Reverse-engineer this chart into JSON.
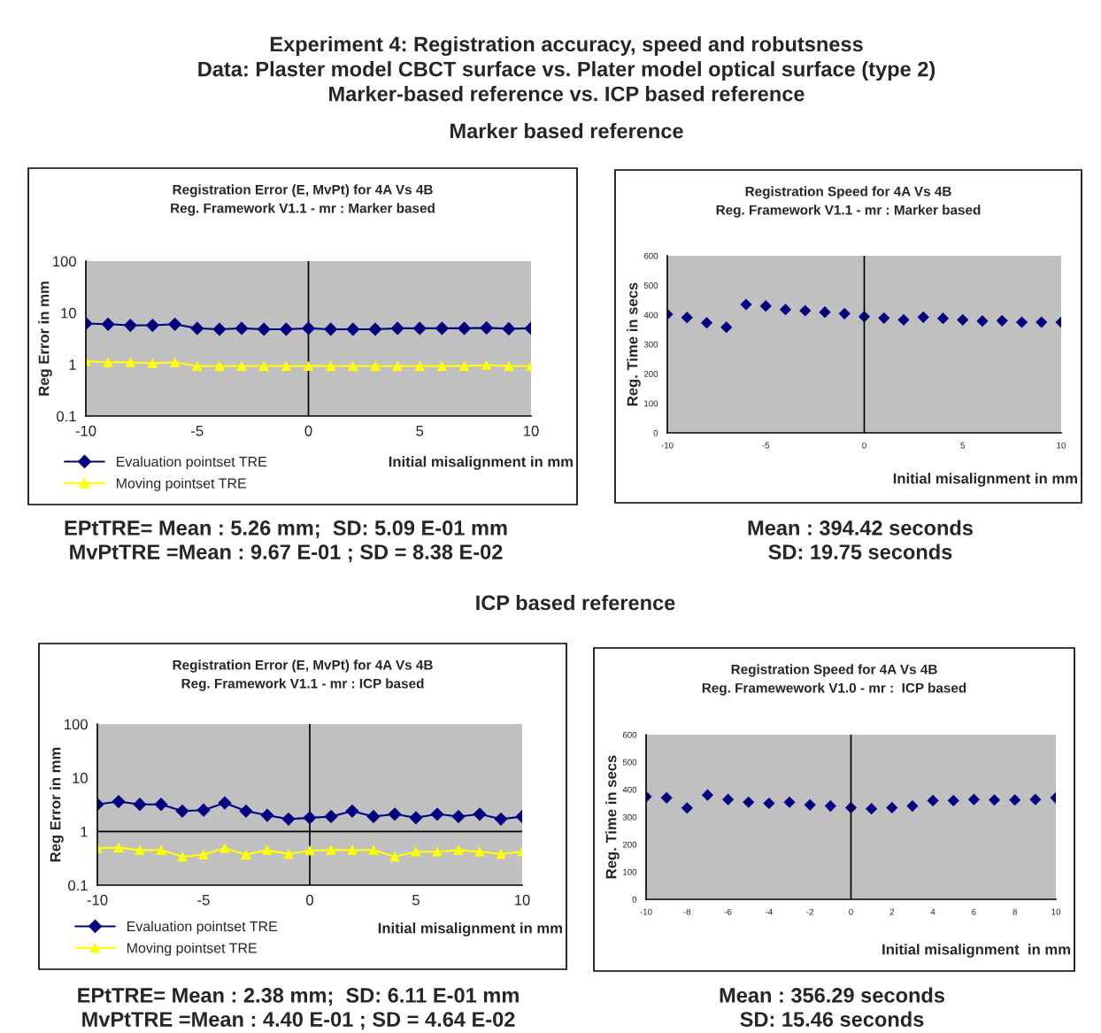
{
  "chart_data": [
    {
      "type": "other",
      "title": "Experiment 4: Registration accuracy, speed and robutsness\nData: Plaster model CBCT surface vs. Plater model optical surface (type 2)\nMarker-based reference vs. ICP based reference",
      "subtitle": "Marker based reference"
    },
    {
      "type": "line",
      "title": "Registration Error (E, MvPt) for 4A Vs 4B\nReg. Framework V1.1 - mr : Marker based",
      "xlabel": "Initial misalignment in mm",
      "ylabel": "Reg Error in mm",
      "log": "y",
      "legend": "bottom left",
      "x": [
        -10,
        -9,
        -8,
        -7,
        -6,
        -5,
        -4,
        -3,
        -2,
        -1,
        0,
        1,
        2,
        3,
        4,
        5,
        6,
        7,
        8,
        9,
        10
      ],
      "series": [
        {
          "name": "Evaluation pointset TRE",
          "color": "#000080",
          "marker": "diamond",
          "values": [
            6.2,
            6.0,
            5.7,
            5.7,
            6.0,
            5.0,
            4.8,
            5.0,
            4.8,
            4.8,
            5.0,
            4.8,
            4.8,
            4.8,
            5.0,
            5.0,
            5.0,
            5.0,
            5.1,
            4.9,
            5.0
          ]
        },
        {
          "name": "Moving pointset TRE",
          "color": "#ffff00",
          "marker": "triangle",
          "values": [
            1.15,
            1.1,
            1.1,
            1.05,
            1.1,
            0.93,
            0.93,
            0.93,
            0.93,
            0.93,
            0.93,
            0.93,
            0.93,
            0.93,
            0.93,
            0.93,
            0.93,
            0.93,
            0.97,
            0.93,
            0.93
          ]
        }
      ],
      "xlim": [
        -10,
        10
      ],
      "xticks": [
        -10,
        -5,
        0,
        5,
        10
      ],
      "ylim": [
        0.1,
        100
      ],
      "yticks": [
        0.1,
        1,
        10,
        100
      ],
      "ref_lines": [
        {
          "axis": "x",
          "value": 0,
          "color": "#000000"
        }
      ],
      "annotations": [
        "EPtTRE= Mean : 5.26 mm;  SD: 5.09 E-01 mm\nMvPtTRE =Mean : 9.67 E-01 ; SD = 8.38 E-02"
      ]
    },
    {
      "type": "scatter",
      "title": "Registration Speed for 4A Vs 4B\nReg. Framework V1.1 - mr : Marker based",
      "xlabel": "Initial misalignment in mm",
      "ylabel": "Reg. Time in secs",
      "marker": "diamond",
      "x": [
        -10,
        -9,
        -8,
        -7,
        -6,
        -5,
        -4,
        -3,
        -2,
        -1,
        0,
        1,
        2,
        3,
        4,
        5,
        6,
        7,
        8,
        9,
        10
      ],
      "series": [
        {
          "color": "#000080",
          "values": [
            402,
            391,
            373,
            358,
            435,
            430,
            418,
            414,
            409,
            404,
            394,
            389,
            383,
            392,
            388,
            383,
            379,
            380,
            375,
            375,
            375
          ]
        }
      ],
      "xlim": [
        -10,
        10
      ],
      "xticks": [
        -10,
        -5,
        0,
        5,
        10
      ],
      "ylim": [
        0,
        600
      ],
      "yticks": [
        0,
        100,
        200,
        300,
        400,
        500,
        600
      ],
      "ref_lines": [
        {
          "axis": "x",
          "value": 0,
          "color": "#000000"
        }
      ],
      "annotations": [
        "Mean : 394.42 seconds\nSD: 19.75 seconds"
      ]
    },
    {
      "type": "other",
      "title": "ICP based reference"
    },
    {
      "type": "line",
      "title": "Registration Error (E, MvPt) for 4A Vs 4B\nReg. Framework V1.1 - mr : ICP based",
      "xlabel": "Initial misalignment in mm",
      "ylabel": "Reg Error in mm",
      "log": "y",
      "legend": "bottom left",
      "x": [
        -10,
        -9,
        -8,
        -7,
        -6,
        -5,
        -4,
        -3,
        -2,
        -1,
        0,
        1,
        2,
        3,
        4,
        5,
        6,
        7,
        8,
        9,
        10
      ],
      "series": [
        {
          "name": "Evaluation pointset TRE",
          "color": "#000080",
          "marker": "diamond",
          "values": [
            3.2,
            3.6,
            3.2,
            3.2,
            2.4,
            2.5,
            3.4,
            2.4,
            2.0,
            1.7,
            1.8,
            1.9,
            2.4,
            1.9,
            2.1,
            1.8,
            2.1,
            1.9,
            2.1,
            1.7,
            1.9
          ]
        },
        {
          "name": "Moving pointset TRE",
          "color": "#ffff00",
          "marker": "triangle",
          "values": [
            0.49,
            0.5,
            0.45,
            0.45,
            0.34,
            0.37,
            0.49,
            0.37,
            0.45,
            0.38,
            0.44,
            0.45,
            0.45,
            0.45,
            0.34,
            0.42,
            0.42,
            0.45,
            0.42,
            0.38,
            0.42
          ]
        }
      ],
      "xlim": [
        -10,
        10
      ],
      "xticks": [
        -10,
        -5,
        0,
        5,
        10
      ],
      "ylim": [
        0.1,
        100
      ],
      "yticks": [
        0.1,
        1,
        10,
        100
      ],
      "ref_lines": [
        {
          "axis": "x",
          "value": 0,
          "color": "#000000"
        },
        {
          "axis": "y",
          "value": 1,
          "color": "#000000"
        }
      ],
      "annotations": [
        "EPtTRE= Mean : 2.38 mm;  SD: 6.11 E-01 mm\nMvPtTRE =Mean : 4.40 E-01 ; SD = 4.64 E-02"
      ]
    },
    {
      "type": "scatter",
      "title": "Registration Speed for 4A Vs 4B\nReg. Framewework V1.0 - mr :  ICP based",
      "xlabel": "Initial misalignment  in mm",
      "ylabel": "Reg. Time in secs",
      "marker": "diamond",
      "x": [
        -10,
        -9,
        -8,
        -7,
        -6,
        -5,
        -4,
        -3,
        -2,
        -1,
        0,
        1,
        2,
        3,
        4,
        5,
        6,
        7,
        8,
        9,
        10
      ],
      "series": [
        {
          "color": "#000080",
          "values": [
            374,
            370,
            333,
            380,
            364,
            354,
            350,
            354,
            344,
            340,
            334,
            330,
            334,
            340,
            360,
            360,
            364,
            362,
            362,
            364,
            370
          ]
        }
      ],
      "xlim": [
        -10,
        10
      ],
      "xticks": [
        -10,
        -8,
        -6,
        -4,
        -2,
        0,
        2,
        4,
        6,
        8,
        10
      ],
      "ylim": [
        0,
        600
      ],
      "yticks": [
        0,
        100,
        200,
        300,
        400,
        500,
        600
      ],
      "ref_lines": [
        {
          "axis": "x",
          "value": 0,
          "color": "#000000"
        }
      ],
      "annotations": [
        "Mean : 356.29 seconds\nSD: 15.46 seconds"
      ]
    }
  ]
}
